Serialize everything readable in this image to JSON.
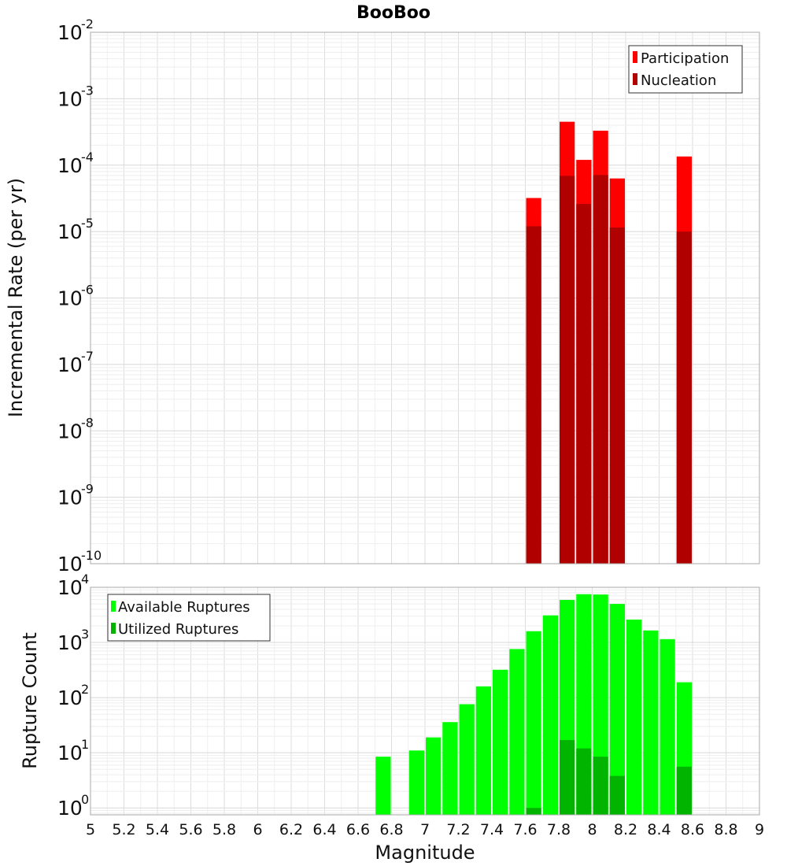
{
  "chart_data": [
    {
      "type": "bar",
      "title": "BooBoo",
      "xlabel": "Magnitude",
      "ylabel": "Incremental Rate (per yr)",
      "yscale": "log",
      "xlim": [
        5,
        9
      ],
      "ylim": [
        1e-10,
        0.01
      ],
      "grid": true,
      "legend_position": "top-right",
      "bin_width": 0.1,
      "y_tick_exponents": [
        -10,
        -9,
        -8,
        -7,
        -6,
        -5,
        -4,
        -3,
        -2
      ],
      "series": [
        {
          "name": "Participation",
          "color": "#ff0000",
          "x": [
            7.65,
            7.85,
            7.95,
            8.05,
            8.15,
            8.55
          ],
          "values": [
            3.2e-05,
            0.00045,
            0.00012,
            0.00033,
            6.3e-05,
            0.000135
          ]
        },
        {
          "name": "Nucleation",
          "color": "#b00000",
          "x": [
            7.65,
            7.85,
            7.95,
            8.05,
            8.15,
            8.55
          ],
          "values": [
            1.2e-05,
            6.9e-05,
            2.6e-05,
            7.1e-05,
            1.15e-05,
            1e-05
          ]
        }
      ]
    },
    {
      "type": "bar",
      "title": "",
      "xlabel": "Magnitude",
      "ylabel": "Rupture Count",
      "yscale": "log",
      "xlim": [
        5,
        9
      ],
      "ylim": [
        0.75,
        10000
      ],
      "grid": true,
      "legend_position": "top-left",
      "bin_width": 0.1,
      "y_tick_exponents": [
        0,
        1,
        2,
        3,
        4
      ],
      "x_ticks": [
        "5",
        "5.2",
        "5.4",
        "5.6",
        "5.8",
        "6",
        "6.2",
        "6.4",
        "6.6",
        "6.8",
        "7",
        "7.2",
        "7.4",
        "7.6",
        "7.8",
        "8",
        "8.2",
        "8.4",
        "8.6",
        "8.8",
        "9"
      ],
      "series": [
        {
          "name": "Available Ruptures",
          "color": "#00ff00",
          "x": [
            6.75,
            6.95,
            7.05,
            7.15,
            7.25,
            7.35,
            7.45,
            7.55,
            7.65,
            7.75,
            7.85,
            7.95,
            8.05,
            8.15,
            8.25,
            8.35,
            8.45,
            8.55
          ],
          "values": [
            8.5,
            11,
            19,
            36,
            76,
            160,
            320,
            760,
            1600,
            3100,
            5900,
            7500,
            7400,
            5000,
            2600,
            1650,
            1150,
            190
          ]
        },
        {
          "name": "Utilized Ruptures",
          "color": "#00b400",
          "x": [
            7.65,
            7.85,
            7.95,
            8.05,
            8.15,
            8.55
          ],
          "values": [
            1,
            17,
            12,
            8.5,
            3.8,
            5.6
          ]
        }
      ]
    }
  ]
}
